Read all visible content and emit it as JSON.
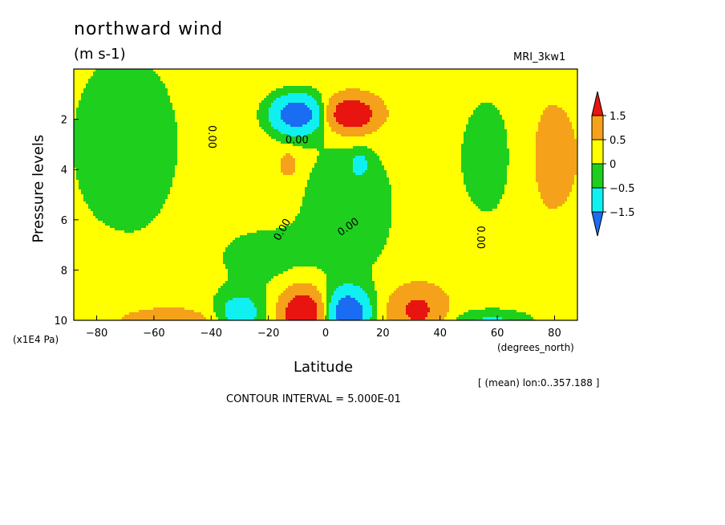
{
  "chart_data": {
    "type": "heatmap",
    "title": "northward wind",
    "units": "(m s-1)",
    "model": "MRI_3kw1",
    "xlabel": "Latitude",
    "x_units": "(degrees_north)",
    "ylabel": "Pressure levels",
    "y_units": "(x1E4 Pa)",
    "subtitle": "[ (mean) lon:0..357.188 ]",
    "contour_interval": "CONTOUR INTERVAL = 5.000E-01",
    "xlim": [
      -88,
      88
    ],
    "ylim": [
      10,
      0
    ],
    "x_ticks": [
      -80,
      -60,
      -40,
      -20,
      0,
      20,
      40,
      60,
      80
    ],
    "x_tick_labels": [
      "−80",
      "−60",
      "−40",
      "−20",
      "0",
      "20",
      "40",
      "60",
      "80"
    ],
    "y_ticks": [
      2,
      4,
      6,
      8,
      10
    ],
    "y_tick_labels": [
      "2",
      "4",
      "6",
      "8",
      "10"
    ],
    "contour_label": "0.00",
    "contour_label_positions": [
      {
        "lat": -40,
        "p": 2.7,
        "rotate": 90
      },
      {
        "lat": -10,
        "p": 2.85,
        "rotate": 0
      },
      {
        "lat": -15,
        "p": 6.4,
        "rotate": -60
      },
      {
        "lat": 8,
        "p": 6.3,
        "rotate": -35
      },
      {
        "lat": 54,
        "p": 6.7,
        "rotate": 90
      }
    ],
    "colorbar": {
      "labels": [
        "1.5",
        "0.5",
        "0",
        "−0.5",
        "−1.5"
      ],
      "colors": [
        "#e8140f",
        "#f5a21a",
        "#ffff00",
        "#1ecf1e",
        "#10f0f0",
        "#1a6cf2"
      ]
    },
    "colors": {
      "strong_negative": "#1a6cf2",
      "negative": "#10f0f0",
      "near_zero_negative": "#1ecf1e",
      "near_zero_positive": "#ffff00",
      "positive": "#f5a21a",
      "strong_positive": "#e8140f"
    },
    "features": [
      {
        "name": "upper-southern-negative-cell",
        "lat": -10,
        "p": 1.8,
        "min_value": -2.0
      },
      {
        "name": "upper-northern-positive-cell",
        "lat": 8,
        "p": 1.8,
        "max_value": 2.0
      },
      {
        "name": "lower-southern-positive-cell",
        "lat": -8,
        "p": 9.6,
        "max_value": 2.0
      },
      {
        "name": "lower-northern-negative-cell",
        "lat": 8,
        "p": 9.6,
        "min_value": -2.0
      },
      {
        "name": "lower-secondary-positive-cell",
        "lat": 32,
        "p": 9.4,
        "max_value": 1.0
      },
      {
        "name": "lower-secondary-negative-cell",
        "lat": -30,
        "p": 9.6,
        "min_value": -1.0
      }
    ]
  }
}
